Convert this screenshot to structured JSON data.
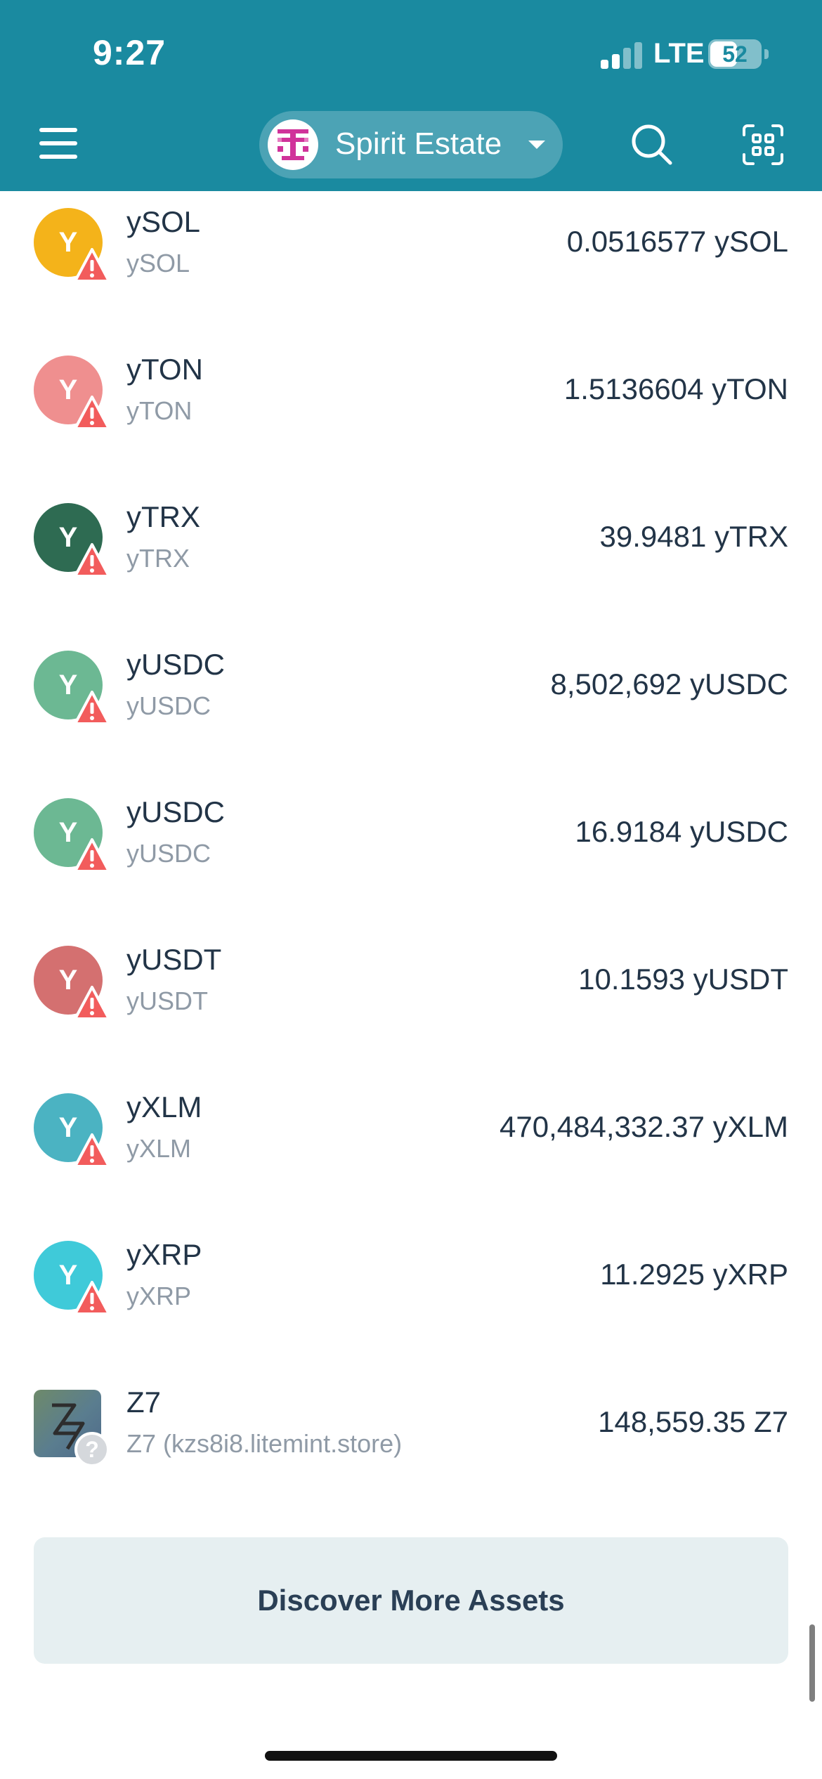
{
  "status_bar": {
    "time": "9:27",
    "network": "LTE",
    "battery": "52"
  },
  "header": {
    "wallet_name": "Spirit Estate"
  },
  "assets": [
    {
      "name": "ySOL",
      "subtitle": "ySOL",
      "balance": "0.0516577 ySOL",
      "icon_letter": "Y",
      "icon_color": "#f4b31a",
      "badge": "warning"
    },
    {
      "name": "yTON",
      "subtitle": "yTON",
      "balance": "1.5136604 yTON",
      "icon_letter": "Y",
      "icon_color": "#ef8f8f",
      "badge": "warning"
    },
    {
      "name": "yTRX",
      "subtitle": "yTRX",
      "balance": "39.9481 yTRX",
      "icon_letter": "Y",
      "icon_color": "#2e6b52",
      "badge": "warning"
    },
    {
      "name": "yUSDC",
      "subtitle": "yUSDC",
      "balance": "8,502,692 yUSDC",
      "icon_letter": "Y",
      "icon_color": "#6cb893",
      "badge": "warning"
    },
    {
      "name": "yUSDC",
      "subtitle": "yUSDC",
      "balance": "16.9184 yUSDC",
      "icon_letter": "Y",
      "icon_color": "#6cb893",
      "badge": "warning"
    },
    {
      "name": "yUSDT",
      "subtitle": "yUSDT",
      "balance": "10.1593 yUSDT",
      "icon_letter": "Y",
      "icon_color": "#d47070",
      "badge": "warning"
    },
    {
      "name": "yXLM",
      "subtitle": "yXLM",
      "balance": "470,484,332.37 yXLM",
      "icon_letter": "Y",
      "icon_color": "#4bb3c2",
      "badge": "warning"
    },
    {
      "name": "yXRP",
      "subtitle": "yXRP",
      "balance": "11.2925 yXRP",
      "icon_letter": "Y",
      "icon_color": "#3fcad9",
      "badge": "warning"
    },
    {
      "name": "Z7",
      "subtitle": "Z7 (kzs8i8.litemint.store)",
      "balance": "148,559.35 Z7",
      "icon_letter": "Z7",
      "icon_color": "#5f7f7c",
      "badge": "unknown"
    }
  ],
  "discover_button": "Discover More Assets",
  "badge_question": "?"
}
